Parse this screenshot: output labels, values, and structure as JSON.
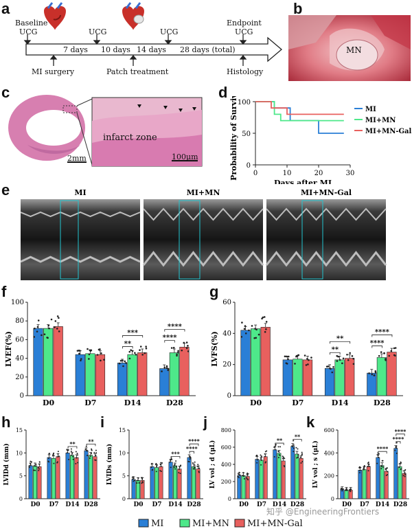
{
  "panel_letters": {
    "a": "a",
    "b": "b",
    "c": "c",
    "d": "d",
    "e": "e",
    "f": "f",
    "g": "g",
    "h": "h",
    "i": "i",
    "j": "j",
    "k": "k"
  },
  "timeline": {
    "top_labels": [
      "Baseline",
      "UCG",
      "UCG",
      "UCG",
      "Endpoint",
      "UCG"
    ],
    "days": [
      "7 days",
      "10 days",
      "14 days",
      "28 days (total)"
    ],
    "bottom_labels": [
      "MI surgery",
      "Patch treatment",
      "Histology"
    ]
  },
  "photo_b": {
    "label": "MN"
  },
  "histology_c": {
    "infarct_label": "infarct zone",
    "scale_left": "2mm",
    "scale_right": "100μm"
  },
  "colors": {
    "MI": "#2a7fd6",
    "MI+MN": "#4ee88a",
    "MI+MN-Gal": "#e8605e"
  },
  "survival_d": {
    "ylabel": "Probability of Survival",
    "xlabel": "Days after MI",
    "yticks": [
      "0",
      "50",
      "100"
    ],
    "xticks": [
      "0",
      "10",
      "20",
      "30"
    ],
    "legend": [
      "MI",
      "MI+MN",
      "MI+MN-Gal"
    ]
  },
  "echo_e": {
    "titles": [
      "MI",
      "MI+MN",
      "MI+MN-Gal"
    ]
  },
  "bottom_legend": [
    "MI",
    "MI+MN",
    "MI+MN-Gal"
  ],
  "watermark": "知乎 @EngineeringFrontiers",
  "chart_data": [
    {
      "id": "d",
      "type": "line",
      "title": "",
      "xlabel": "Days after MI",
      "ylabel": "Probability of Survival",
      "xlim": [
        0,
        30
      ],
      "ylim": [
        0,
        100
      ],
      "series": [
        {
          "name": "MI",
          "steps": [
            [
              0,
              100
            ],
            [
              6,
              100
            ],
            [
              6,
              90
            ],
            [
              11,
              90
            ],
            [
              11,
              70
            ],
            [
              20,
              70
            ],
            [
              20,
              50
            ],
            [
              28,
              50
            ]
          ]
        },
        {
          "name": "MI+MN",
          "steps": [
            [
              0,
              100
            ],
            [
              6,
              100
            ],
            [
              6,
              80
            ],
            [
              8,
              80
            ],
            [
              8,
              70
            ],
            [
              28,
              70
            ]
          ]
        },
        {
          "name": "MI+MN-Gal",
          "steps": [
            [
              0,
              100
            ],
            [
              5,
              100
            ],
            [
              5,
              90
            ],
            [
              10,
              90
            ],
            [
              10,
              80
            ],
            [
              28,
              80
            ]
          ]
        }
      ]
    },
    {
      "id": "f",
      "type": "bar",
      "ylabel": "LVEF(%)",
      "ylim": [
        0,
        100
      ],
      "yticks": [
        "0",
        "20",
        "40",
        "60",
        "80",
        "100"
      ],
      "categories": [
        "D0",
        "D7",
        "D14",
        "D28"
      ],
      "series": [
        {
          "name": "MI",
          "values": [
            72,
            44,
            35,
            29
          ]
        },
        {
          "name": "MI+MN",
          "values": [
            72,
            45,
            44,
            46
          ]
        },
        {
          "name": "MI+MN-Gal",
          "values": [
            74,
            44,
            46,
            52
          ]
        }
      ],
      "significance": [
        {
          "cat": 2,
          "from": 0,
          "to": 1,
          "text": "**"
        },
        {
          "cat": 2,
          "from": 0,
          "to": 2,
          "text": "***"
        },
        {
          "cat": 3,
          "from": 0,
          "to": 1,
          "text": "****"
        },
        {
          "cat": 3,
          "from": 0,
          "to": 2,
          "text": "****"
        }
      ]
    },
    {
      "id": "g",
      "type": "bar",
      "ylabel": "LVFS(%)",
      "ylim": [
        0,
        60
      ],
      "yticks": [
        "0",
        "20",
        "40",
        "60"
      ],
      "categories": [
        "D0",
        "D7",
        "D14",
        "D28"
      ],
      "series": [
        {
          "name": "MI",
          "values": [
            42,
            23,
            17.5,
            14.5
          ]
        },
        {
          "name": "MI+MN",
          "values": [
            43,
            23.5,
            23,
            24.5
          ]
        },
        {
          "name": "MI+MN-Gal",
          "values": [
            44,
            23,
            24,
            28
          ]
        }
      ],
      "significance": [
        {
          "cat": 2,
          "from": 0,
          "to": 1,
          "text": "**"
        },
        {
          "cat": 2,
          "from": 0,
          "to": 2,
          "text": "**"
        },
        {
          "cat": 3,
          "from": 0,
          "to": 1,
          "text": "****"
        },
        {
          "cat": 3,
          "from": 0,
          "to": 2,
          "text": "****"
        }
      ]
    },
    {
      "id": "h",
      "type": "bar",
      "ylabel": "LVIDd (mm)",
      "ylim": [
        0,
        15
      ],
      "yticks": [
        "0",
        "5",
        "10",
        "15"
      ],
      "categories": [
        "D0",
        "D7",
        "D14",
        "D28"
      ],
      "series": [
        {
          "name": "MI",
          "values": [
            7.2,
            9.0,
            10.0,
            10.5
          ]
        },
        {
          "name": "MI+MN",
          "values": [
            7.2,
            8.8,
            9.5,
            9.5
          ]
        },
        {
          "name": "MI+MN-Gal",
          "values": [
            7.0,
            9.2,
            9.0,
            9.2
          ]
        }
      ],
      "significance": [
        {
          "cat": 2,
          "from": 0,
          "to": 2,
          "text": "**"
        },
        {
          "cat": 3,
          "from": 0,
          "to": 2,
          "text": "**"
        }
      ]
    },
    {
      "id": "i",
      "type": "bar",
      "ylabel": "LVIDs (mm)",
      "ylim": [
        0,
        15
      ],
      "yticks": [
        "0",
        "5",
        "10",
        "15"
      ],
      "categories": [
        "D0",
        "D7",
        "D14",
        "D28"
      ],
      "series": [
        {
          "name": "MI",
          "values": [
            4.2,
            7.0,
            8.0,
            9.0
          ]
        },
        {
          "name": "MI+MN",
          "values": [
            4.0,
            6.8,
            7.2,
            7.0
          ]
        },
        {
          "name": "MI+MN-Gal",
          "values": [
            4.0,
            7.0,
            6.5,
            6.5
          ]
        }
      ],
      "significance": [
        {
          "cat": 2,
          "from": 0,
          "to": 2,
          "text": "***"
        },
        {
          "cat": 3,
          "from": 0,
          "to": 1,
          "text": "****"
        },
        {
          "cat": 3,
          "from": 0,
          "to": 2,
          "text": "****"
        }
      ]
    },
    {
      "id": "j",
      "type": "bar",
      "ylabel": "LV vol ; d (μL)",
      "ylim": [
        0,
        800
      ],
      "yticks": [
        "0",
        "200",
        "400",
        "600",
        "800"
      ],
      "categories": [
        "D0",
        "D7",
        "D14",
        "D28"
      ],
      "series": [
        {
          "name": "MI",
          "values": [
            270,
            460,
            570,
            610
          ]
        },
        {
          "name": "MI+MN",
          "values": [
            270,
            450,
            530,
            520
          ]
        },
        {
          "name": "MI+MN-Gal",
          "values": [
            260,
            490,
            440,
            470
          ]
        }
      ],
      "significance": [
        {
          "cat": 2,
          "from": 0,
          "to": 2,
          "text": "**"
        },
        {
          "cat": 3,
          "from": 0,
          "to": 2,
          "text": "**"
        }
      ]
    },
    {
      "id": "k",
      "type": "bar",
      "ylabel": "LV vol ; s (μL)",
      "ylim": [
        0,
        600
      ],
      "yticks": [
        "0",
        "200",
        "400",
        "600"
      ],
      "categories": [
        "D0",
        "D7",
        "D14",
        "D28"
      ],
      "series": [
        {
          "name": "MI",
          "values": [
            80,
            250,
            360,
            440
          ]
        },
        {
          "name": "MI+MN",
          "values": [
            75,
            255,
            290,
            280
          ]
        },
        {
          "name": "MI+MN-Gal",
          "values": [
            75,
            280,
            240,
            220
          ]
        }
      ],
      "significance": [
        {
          "cat": 2,
          "from": 0,
          "to": 2,
          "text": "****"
        },
        {
          "cat": 3,
          "from": 0,
          "to": 1,
          "text": "****"
        },
        {
          "cat": 3,
          "from": 0,
          "to": 2,
          "text": "****"
        }
      ]
    }
  ]
}
